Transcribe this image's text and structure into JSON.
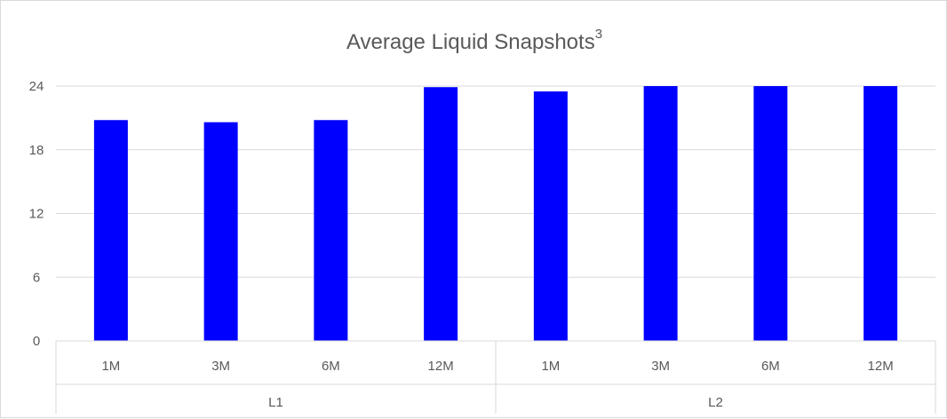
{
  "chart_data": {
    "type": "bar",
    "title": "Average Liquid Snapshots",
    "title_superscript": "3",
    "xlabel": "",
    "ylabel": "",
    "ylim": [
      0,
      24
    ],
    "yticks": [
      0,
      6,
      12,
      18,
      24
    ],
    "grid": true,
    "legend": "none",
    "groups": [
      {
        "name": "L1",
        "categories": [
          "1M",
          "3M",
          "6M",
          "12M"
        ]
      },
      {
        "name": "L2",
        "categories": [
          "1M",
          "3M",
          "6M",
          "12M"
        ]
      }
    ],
    "categories": [
      "1M",
      "3M",
      "6M",
      "12M",
      "1M",
      "3M",
      "6M",
      "12M"
    ],
    "values": [
      20.8,
      20.6,
      20.8,
      23.9,
      23.5,
      24.0,
      24.0,
      24.0
    ],
    "bar_color": "#0000ff"
  }
}
